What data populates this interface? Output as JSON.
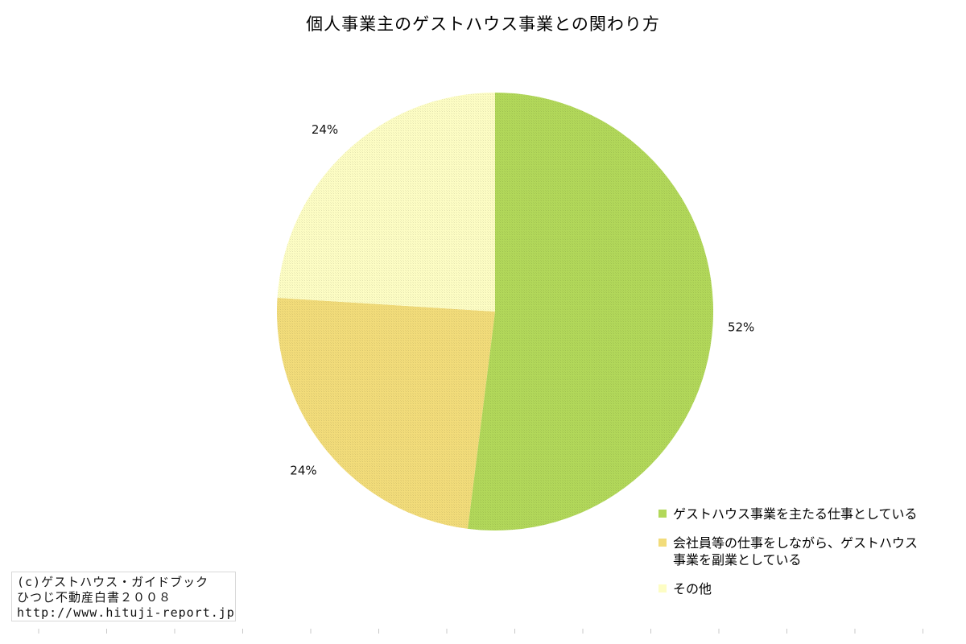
{
  "chart_data": {
    "type": "pie",
    "title": "個人事業主のゲストハウス事業との関わり方",
    "slices": [
      {
        "label": "ゲストハウス事業を主たる仕事としている",
        "value": 52,
        "display": "52%",
        "color": "#b2d85a"
      },
      {
        "label": "会社員等の仕事をしながら、ゲストハウス\n事業を副業としている",
        "value": 24,
        "display": "24%",
        "color": "#f2dc7a"
      },
      {
        "label": "その他",
        "value": 24,
        "display": "24%",
        "color": "#fdfdc4"
      }
    ],
    "legend_position": "bottom-right",
    "start_angle": "12 o'clock",
    "direction": "clockwise"
  },
  "credit": {
    "lines": [
      "(c)ゲストハウス・ガイドブック",
      "ひつじ不動産白書２００８",
      "http://www.hituji-report.jp/"
    ]
  }
}
